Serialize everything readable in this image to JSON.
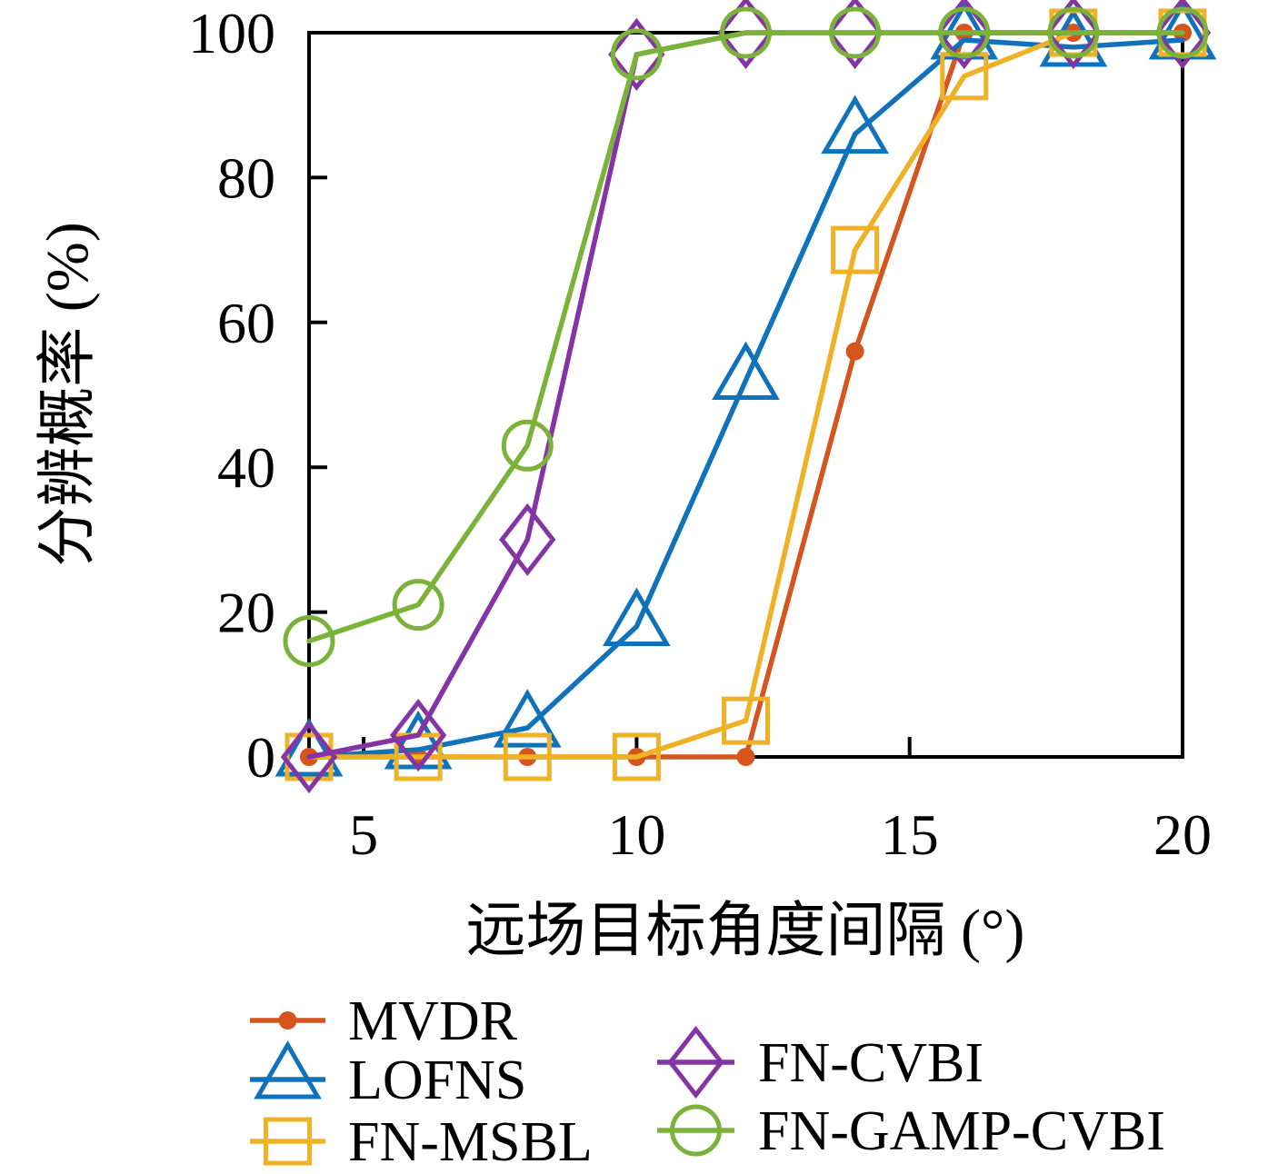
{
  "chart_data": {
    "type": "line",
    "title": "",
    "xlabel": "远场目标角度间隔 (°)",
    "ylabel": "分辨概率 (%)",
    "xlim": [
      4,
      20
    ],
    "ylim": [
      0,
      100
    ],
    "x_ticks": [
      5,
      10,
      15,
      20
    ],
    "y_ticks": [
      0,
      20,
      40,
      60,
      80,
      100
    ],
    "grid": false,
    "legend_position": "below plot, two columns",
    "axis_color": "#000000",
    "x": [
      4,
      6,
      8,
      10,
      12,
      14,
      16,
      18,
      20
    ],
    "series": [
      {
        "name": "MVDR",
        "color": "#D6551F",
        "marker": "dot",
        "values": [
          0,
          0,
          0,
          0,
          0,
          56,
          100,
          100,
          100
        ]
      },
      {
        "name": "LOFNS",
        "color": "#0F72BB",
        "marker": "triangle",
        "values": [
          0,
          1,
          4,
          18,
          52,
          86,
          99,
          98,
          99
        ]
      },
      {
        "name": "FN-MSBL",
        "color": "#EFB226",
        "marker": "square",
        "values": [
          0,
          0,
          0,
          0,
          5,
          70,
          94,
          100,
          100
        ]
      },
      {
        "name": "FN-CVBI",
        "color": "#8534A6",
        "marker": "diamond",
        "values": [
          0,
          3,
          30,
          97,
          100,
          100,
          100,
          100,
          100
        ]
      },
      {
        "name": "FN-GAMP-CVBI",
        "color": "#7BB33A",
        "marker": "circle",
        "values": [
          16,
          21,
          43,
          97,
          100,
          100,
          100,
          100,
          100
        ]
      }
    ]
  },
  "legend": {
    "columns": [
      [
        "MVDR",
        "LOFNS",
        "FN-MSBL"
      ],
      [
        "FN-CVBI",
        "FN-GAMP-CVBI"
      ]
    ]
  }
}
